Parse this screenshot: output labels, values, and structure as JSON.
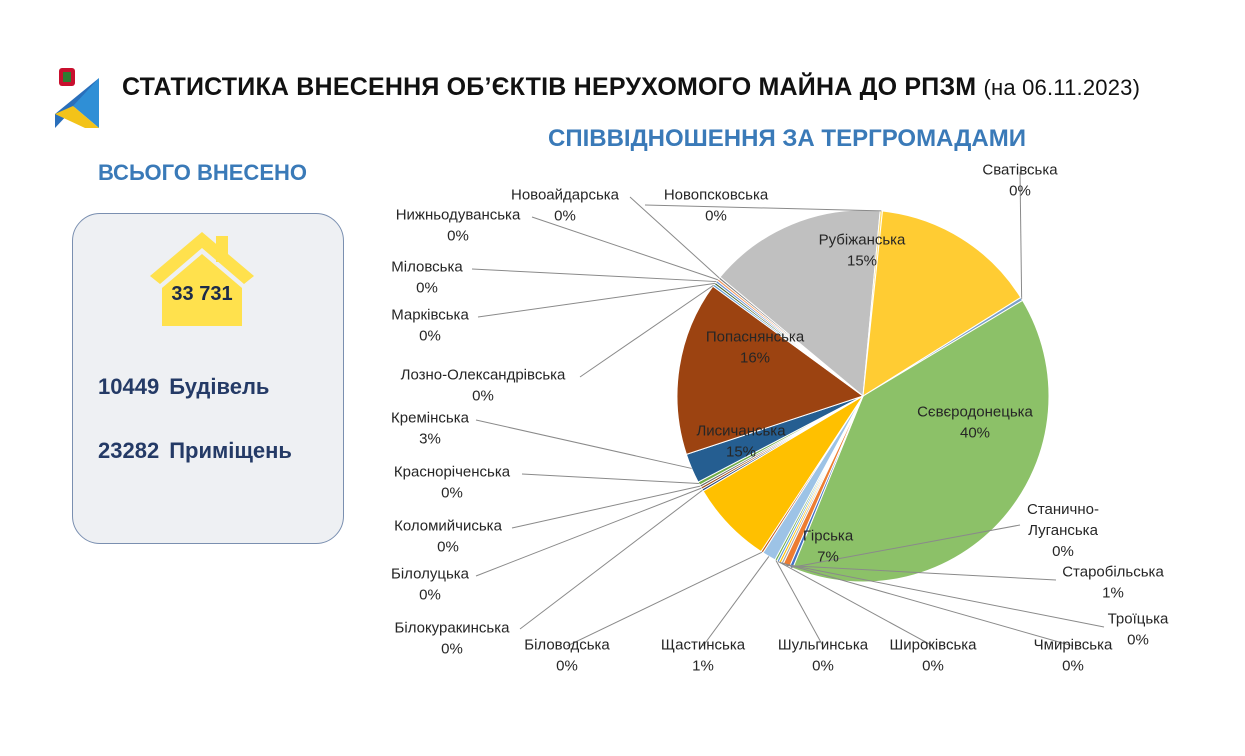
{
  "header": {
    "title": "СТАТИСТИКА ВНЕСЕННЯ ОБ’ЄКТІВ НЕРУХОМОГО МАЙНА ДО РПЗМ",
    "date": "(на 06.11.2023)"
  },
  "summary": {
    "heading": "ВСЬОГО ВНЕСЕНО",
    "total": "33 731",
    "buildings_count": "10449",
    "buildings_label": "Будівель",
    "premises_count": "23282",
    "premises_label": "Приміщень"
  },
  "colors": {
    "accent_blue": "#3a7ab8",
    "house_yellow": "#ffe14d",
    "card_bg": "#eef0f3"
  },
  "chart_data": {
    "type": "pie",
    "title": "СПІВВІДНОШЕННЯ ЗА ТЕРГРОМАДАМИ",
    "slices": [
      {
        "name": "Сватівська",
        "value": 0.3,
        "pct": "0%",
        "color": "#7ba0c8"
      },
      {
        "name": "Сєвєродонецька",
        "value": 40.2,
        "pct": "40%",
        "color": "#8cc168"
      },
      {
        "name": "Станично-Луганська",
        "value": 0.3,
        "pct": "0%",
        "color": "#4472c4"
      },
      {
        "name": "Старобільська",
        "value": 0.6,
        "pct": "1%",
        "color": "#ed7d31"
      },
      {
        "name": "Троїцька",
        "value": 0.2,
        "pct": "0%",
        "color": "#a5a5a5"
      },
      {
        "name": "Чмирівська",
        "value": 0.2,
        "pct": "0%",
        "color": "#ffc000"
      },
      {
        "name": "Широківська",
        "value": 0.2,
        "pct": "0%",
        "color": "#5b9bd5"
      },
      {
        "name": "Шульгинська",
        "value": 0.2,
        "pct": "0%",
        "color": "#70ad47"
      },
      {
        "name": "Щастинська",
        "value": 1.2,
        "pct": "1%",
        "color": "#9dc3e6"
      },
      {
        "name": "Біловодська",
        "value": 0.2,
        "pct": "0%",
        "color": "#c55a11"
      },
      {
        "name": "Гірська",
        "value": 7.3,
        "pct": "7%",
        "color": "#ffc000"
      },
      {
        "name": "Білокуракинська",
        "value": 0.2,
        "pct": "0%",
        "color": "#264478"
      },
      {
        "name": "Білолуцька",
        "value": 0.2,
        "pct": "0%",
        "color": "#9e480e"
      },
      {
        "name": "Коломийчиська",
        "value": 0.2,
        "pct": "0%",
        "color": "#636363"
      },
      {
        "name": "Краснорічeнська",
        "value": 0.3,
        "pct": "0%",
        "color": "#70ad47"
      },
      {
        "name": "Кремінська",
        "value": 2.6,
        "pct": "3%",
        "color": "#255e91"
      },
      {
        "name": "Лисичанська",
        "value": 15.3,
        "pct": "15%",
        "color": "#9c4311"
      },
      {
        "name": "Лозно-Олександрівська",
        "value": 0.2,
        "pct": "0%",
        "color": "#5b9bd5"
      },
      {
        "name": "Марківська",
        "value": 0.2,
        "pct": "0%",
        "color": "#43682b"
      },
      {
        "name": "Міловська",
        "value": 0.2,
        "pct": "0%",
        "color": "#698ed0"
      },
      {
        "name": "Нижньодуванська",
        "value": 0.2,
        "pct": "0%",
        "color": "#f1975a"
      },
      {
        "name": "Новоайдарська",
        "value": 0.2,
        "pct": "0%",
        "color": "#7f7f7f"
      },
      {
        "name": "Попаснянська",
        "value": 15.6,
        "pct": "16%",
        "color": "#c0c0c0"
      },
      {
        "name": "Новопсковська",
        "value": 0.2,
        "pct": "0%",
        "color": "#ffd966"
      },
      {
        "name": "Рубіжанська",
        "value": 14.6,
        "pct": "15%",
        "color": "#ffcc33"
      }
    ]
  }
}
